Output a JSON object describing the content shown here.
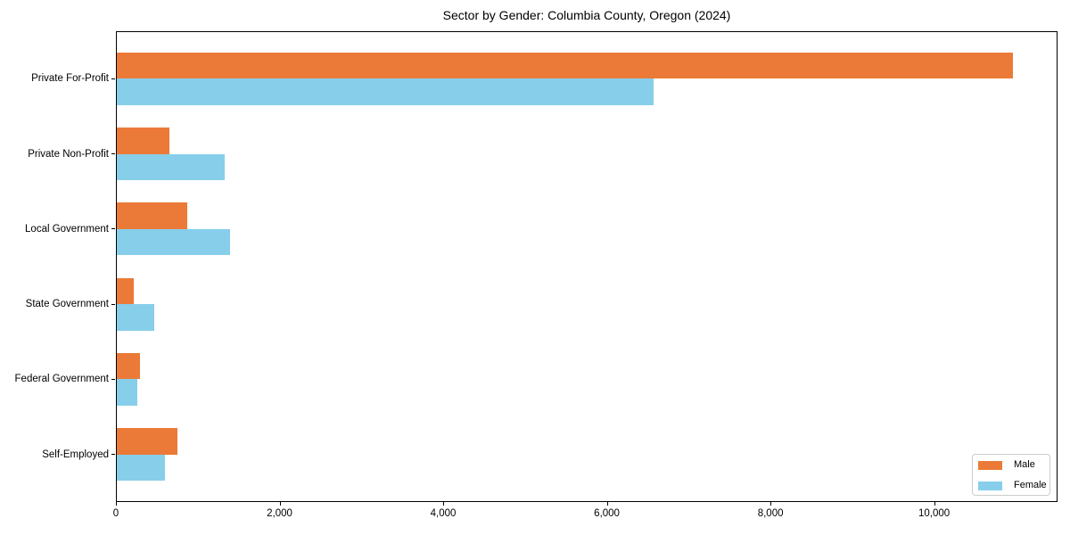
{
  "chart_data": {
    "type": "bar",
    "orientation": "horizontal",
    "title": "Sector by Gender: Columbia County, Oregon (2024)",
    "categories": [
      "Private For-Profit",
      "Private Non-Profit",
      "Local Government",
      "State Government",
      "Federal Government",
      "Self-Employed"
    ],
    "series": [
      {
        "name": "Male",
        "color": "#EB7A38",
        "values": [
          10960,
          650,
          875,
          215,
          295,
          750
        ]
      },
      {
        "name": "Female",
        "color": "#87CEEB",
        "values": [
          6570,
          1330,
          1395,
          465,
          265,
          600
        ]
      }
    ],
    "x_ticks": [
      0,
      2000,
      4000,
      6000,
      8000,
      10000
    ],
    "x_tick_labels": [
      "0",
      "2,000",
      "4,000",
      "6,000",
      "8,000",
      "10,000"
    ],
    "xlim": [
      0,
      11508
    ],
    "ylabel": "",
    "xlabel": "",
    "grid": false,
    "bar_height_category_fraction": 0.35,
    "legend": {
      "position": "lower right",
      "entries": [
        "Male",
        "Female"
      ]
    },
    "colors": {
      "male": "#EB7A38",
      "female": "#87CEEB",
      "axis": "#000000",
      "legend_border": "#cccccc",
      "background": "#ffffff"
    }
  }
}
